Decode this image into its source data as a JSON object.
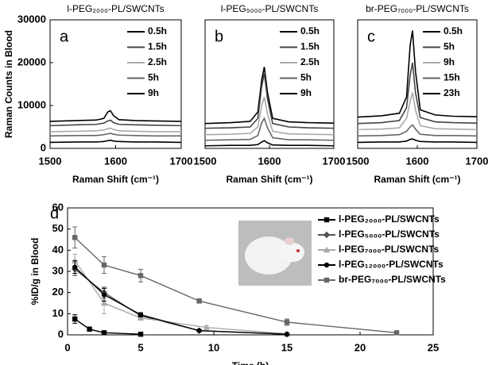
{
  "chart_data": [
    {
      "type": "line",
      "label": "a",
      "title": "l-PEG₂₀₀₀-PL/SWCNTs",
      "xlabel": "Raman Shift (cm⁻¹)",
      "ylabel": "Raman Counts in Blood",
      "x": [
        1500,
        1540,
        1570,
        1582,
        1588,
        1592,
        1597,
        1605,
        1630,
        1660,
        1700
      ],
      "xlim": [
        1500,
        1700
      ],
      "xticks": [
        1500,
        1600,
        1700
      ],
      "ylim": [
        0,
        30000
      ],
      "yticks": [
        0,
        10000,
        20000,
        30000
      ],
      "legend": "upper right",
      "series": [
        {
          "name": "0.5h",
          "color": "#000000",
          "values": [
            6300,
            6500,
            6600,
            7000,
            8500,
            8800,
            7600,
            6700,
            6500,
            6400,
            6300
          ]
        },
        {
          "name": "1.5h",
          "color": "#444444",
          "values": [
            5300,
            5500,
            5600,
            5900,
            6400,
            6600,
            6000,
            5600,
            5500,
            5400,
            5300
          ]
        },
        {
          "name": "2.5h",
          "color": "#aaaaaa",
          "values": [
            3900,
            4000,
            4100,
            4300,
            4600,
            4700,
            4400,
            4100,
            4000,
            3900,
            3900
          ]
        },
        {
          "name": "5h",
          "color": "#666666",
          "values": [
            2900,
            3000,
            3000,
            3200,
            3400,
            3500,
            3300,
            3100,
            3000,
            2900,
            2900
          ]
        },
        {
          "name": "9h",
          "color": "#000000",
          "values": [
            1400,
            1500,
            1500,
            1600,
            1800,
            1900,
            1700,
            1600,
            1500,
            1500,
            1400
          ]
        }
      ]
    },
    {
      "type": "line",
      "label": "b",
      "title": "l-PEG₅₀₀₀-PL/SWCNTs",
      "xlabel": "Raman Shift (cm⁻¹)",
      "x": [
        1500,
        1540,
        1570,
        1582,
        1588,
        1592,
        1597,
        1605,
        1630,
        1660,
        1700
      ],
      "xlim": [
        1500,
        1700
      ],
      "xticks": [
        1500,
        1600,
        1700
      ],
      "ylim": [
        0,
        30000
      ],
      "legend": "upper right",
      "series": [
        {
          "name": "0.5h",
          "color": "#000000",
          "values": [
            5800,
            6000,
            6300,
            8500,
            16000,
            19000,
            13000,
            7000,
            6200,
            6000,
            5900
          ]
        },
        {
          "name": "1.5h",
          "color": "#444444",
          "values": [
            4700,
            4800,
            5000,
            7000,
            14500,
            17500,
            11500,
            5800,
            5000,
            4800,
            4700
          ]
        },
        {
          "name": "2.5h",
          "color": "#aaaaaa",
          "values": [
            3200,
            3300,
            3500,
            5000,
            10000,
            12000,
            8000,
            4000,
            3400,
            3300,
            3200
          ]
        },
        {
          "name": "5h",
          "color": "#666666",
          "values": [
            1900,
            2000,
            2100,
            3000,
            6000,
            7000,
            4800,
            2500,
            2000,
            2000,
            1900
          ]
        },
        {
          "name": "9h",
          "color": "#000000",
          "values": [
            600,
            700,
            700,
            900,
            1500,
            1800,
            1300,
            800,
            700,
            700,
            600
          ]
        }
      ]
    },
    {
      "type": "line",
      "label": "c",
      "title": "br-PEG₇₀₀₀-PL/SWCNTs",
      "xlabel": "Raman Shift (cm⁻¹)",
      "x": [
        1500,
        1540,
        1570,
        1582,
        1588,
        1592,
        1597,
        1605,
        1630,
        1660,
        1700
      ],
      "xlim": [
        1500,
        1700
      ],
      "xticks": [
        1500,
        1600,
        1700
      ],
      "ylim": [
        0,
        30000
      ],
      "legend": "upper right",
      "series": [
        {
          "name": "0.5h",
          "color": "#000000",
          "values": [
            7300,
            7600,
            8200,
            12000,
            24000,
            27500,
            18000,
            9000,
            7800,
            7500,
            7400
          ]
        },
        {
          "name": "5h",
          "color": "#444444",
          "values": [
            5800,
            6000,
            6500,
            9500,
            17000,
            20000,
            13000,
            7200,
            6200,
            6000,
            5900
          ]
        },
        {
          "name": "9h",
          "color": "#aaaaaa",
          "values": [
            4400,
            4500,
            4800,
            7000,
            11000,
            13000,
            9000,
            5300,
            4600,
            4500,
            4400
          ]
        },
        {
          "name": "15h",
          "color": "#666666",
          "values": [
            2900,
            3000,
            3200,
            4000,
            5000,
            5500,
            4500,
            3300,
            3000,
            3000,
            2900
          ]
        },
        {
          "name": "23h",
          "color": "#000000",
          "values": [
            1400,
            1500,
            1500,
            1700,
            2100,
            2200,
            1900,
            1600,
            1500,
            1500,
            1400
          ]
        }
      ]
    },
    {
      "type": "line",
      "label": "d",
      "xlabel": "Time (h)",
      "ylabel": "%ID/g in Blood",
      "xlim": [
        0,
        25
      ],
      "xticks": [
        0,
        5,
        10,
        15,
        20,
        25
      ],
      "ylim": [
        0,
        60
      ],
      "yticks": [
        0,
        10,
        20,
        30,
        40,
        50,
        60
      ],
      "legend": "upper right",
      "series": [
        {
          "name": "l-PEG₂₀₀₀-PL/SWCNTs",
          "color": "#000000",
          "marker": "square",
          "x": [
            0.5,
            1.5,
            2.5,
            5
          ],
          "values": [
            7.5,
            2.7,
            1,
            0.3
          ],
          "errors": [
            2,
            1,
            0.5,
            0.2
          ]
        },
        {
          "name": "l-PEG₅₀₀₀-PL/SWCNTs",
          "color": "#555555",
          "marker": "diamond",
          "x": [
            0.5,
            2.5,
            5,
            9,
            15
          ],
          "values": [
            31,
            20,
            9,
            2,
            0.3
          ],
          "errors": [
            3,
            2.5,
            1,
            0.5,
            0.2
          ]
        },
        {
          "name": "l-PEG₇₀₀₀-PL/SWCNTs",
          "color": "#aaaaaa",
          "marker": "triangle",
          "x": [
            0.5,
            2.5,
            5,
            9.5,
            15
          ],
          "values": [
            35,
            15,
            8,
            3.5,
            0.5
          ],
          "errors": [
            3,
            5,
            1,
            0.8,
            0.3
          ]
        },
        {
          "name": "l-PEG₁₂₀₀₀-PL/SWCNTs",
          "color": "#000000",
          "marker": "circle",
          "x": [
            0.5,
            2.5,
            5,
            9,
            15
          ],
          "values": [
            32,
            19,
            9.5,
            2,
            0.3
          ],
          "errors": [
            3,
            3,
            1,
            0.5,
            0.2
          ]
        },
        {
          "name": "br-PEG₇₀₀₀-PL/SWCNTs",
          "color": "#666666",
          "marker": "square",
          "x": [
            0.5,
            2.5,
            5,
            9,
            15,
            22.5
          ],
          "values": [
            46,
            33,
            28,
            16,
            6,
            1
          ],
          "errors": [
            5,
            4,
            3,
            1,
            1.5,
            0.5
          ]
        }
      ]
    }
  ]
}
